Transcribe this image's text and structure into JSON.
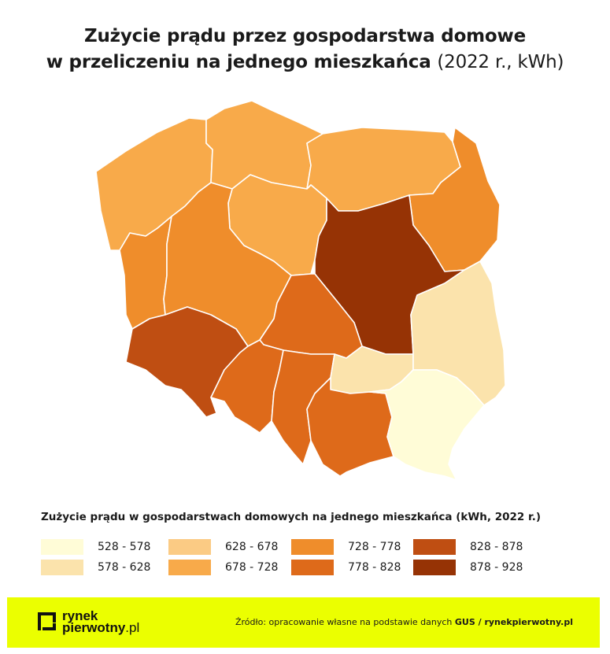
{
  "title": {
    "line1": "Zużycie prądu przez gospodarstwa domowe",
    "line2": "w przeliczeniu na jednego mieszkańca",
    "line2_suffix": "(2022 r., kWh)"
  },
  "map": {
    "regions": [
      {
        "id": "pomorskie",
        "class_index": 3
      },
      {
        "id": "zachodniopomorskie",
        "class_index": 3
      },
      {
        "id": "warminsko-mazurskie",
        "class_index": 3
      },
      {
        "id": "podlaskie",
        "class_index": 4
      },
      {
        "id": "kujawsko-pomorskie",
        "class_index": 3
      },
      {
        "id": "lubuskie",
        "class_index": 4
      },
      {
        "id": "wielkopolskie",
        "class_index": 4
      },
      {
        "id": "mazowieckie",
        "class_index": 7
      },
      {
        "id": "lodzkie",
        "class_index": 5
      },
      {
        "id": "dolnoslaskie",
        "class_index": 6
      },
      {
        "id": "opolskie",
        "class_index": 5
      },
      {
        "id": "slaskie",
        "class_index": 5
      },
      {
        "id": "swietokrzyskie",
        "class_index": 1
      },
      {
        "id": "lubelskie",
        "class_index": 1
      },
      {
        "id": "malopolskie",
        "class_index": 5
      },
      {
        "id": "podkarpackie",
        "class_index": 0
      }
    ]
  },
  "legend": {
    "title": "Zużycie prądu w gospodarstwach domowych na jednego mieszkańca (kWh, 2022 r.)",
    "classes": [
      {
        "label": "528 - 578",
        "color": "#fffcd7"
      },
      {
        "label": "578 - 628",
        "color": "#fbe3ac"
      },
      {
        "label": "628 - 678",
        "color": "#fbcb84"
      },
      {
        "label": "678 - 728",
        "color": "#f8aa4a"
      },
      {
        "label": "728 - 778",
        "color": "#ef8d2b"
      },
      {
        "label": "778 - 828",
        "color": "#de6a1a"
      },
      {
        "label": "828 - 878",
        "color": "#bf4e12"
      },
      {
        "label": "878 - 928",
        "color": "#963305"
      }
    ]
  },
  "footer": {
    "background": "#ebff00",
    "logo_line1": "rynek",
    "logo_line2": "pierwotny",
    "logo_tld": ".pl",
    "source_prefix": "Źródło: opracowanie własne na podstawie danych",
    "source_bold": "GUS / rynekpierwotny.pl"
  }
}
